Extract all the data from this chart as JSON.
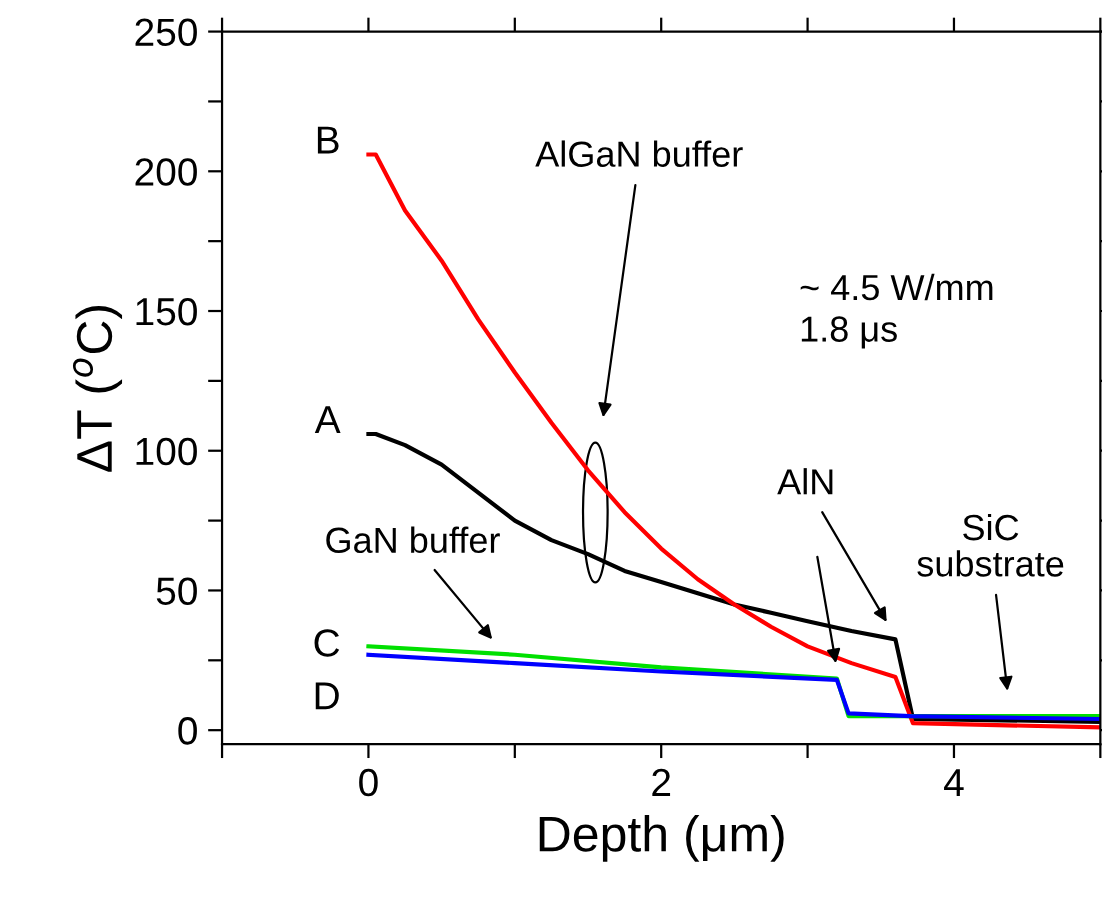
{
  "chart_data": {
    "type": "line",
    "xlabel": "Depth (μm)",
    "ylabel": "ΔT ($^{o}$C)",
    "xlim": [
      -1,
      5
    ],
    "ylim": [
      -5,
      250
    ],
    "xticks": [
      {
        "value": -1,
        "label": null
      },
      0,
      {
        "value": 1,
        "label": null
      },
      2,
      {
        "value": 3,
        "label": null
      },
      4,
      {
        "value": 5,
        "label": null
      }
    ],
    "yticks": [
      0,
      {
        "value": 25,
        "label": null
      },
      50,
      {
        "value": 75,
        "label": null
      },
      100,
      {
        "value": 125,
        "label": null
      },
      150,
      {
        "value": 175,
        "label": null
      },
      200,
      {
        "value": 225,
        "label": null
      },
      250
    ],
    "grid": false,
    "legend": false,
    "marker": "none",
    "line_style": "solid",
    "series": [
      {
        "name": "A",
        "color": "#000000",
        "x": [
          0,
          0.05,
          0.25,
          0.5,
          0.75,
          1,
          1.25,
          1.5,
          1.75,
          2,
          2.25,
          2.5,
          2.75,
          3,
          3.3,
          3.6,
          3.72,
          5
        ],
        "values": [
          106,
          106,
          102,
          95,
          85,
          75,
          68,
          63,
          57,
          53,
          49,
          45,
          42,
          39,
          35.5,
          32.5,
          4,
          3
        ]
      },
      {
        "name": "B",
        "color": "#ff0000",
        "x": [
          0,
          0.05,
          0.25,
          0.5,
          0.75,
          1,
          1.25,
          1.5,
          1.75,
          2,
          2.25,
          2.5,
          2.75,
          3,
          3.3,
          3.6,
          3.72,
          5
        ],
        "values": [
          206,
          206,
          186,
          168,
          147,
          128,
          110,
          93,
          78,
          65,
          54,
          45,
          37,
          30,
          24,
          19,
          2.5,
          1
        ]
      },
      {
        "name": "C",
        "color": "#00e000",
        "x": [
          0,
          1,
          2,
          3.2,
          3.28,
          4,
          5
        ],
        "values": [
          30,
          27,
          22.5,
          18.5,
          5,
          5,
          5
        ]
      },
      {
        "name": "D",
        "color": "#0000ff",
        "x": [
          0,
          1,
          2,
          3.2,
          3.28,
          3.7,
          5
        ],
        "values": [
          27,
          24,
          21,
          18,
          6,
          5,
          4
        ]
      }
    ],
    "annotations": [
      "AlGaN buffer",
      {
        "text": "GaN buffer",
        "x": 0.87,
        "y": 31
      },
      {
        "text": "AlN",
        "x": 3.56,
        "y": 37
      },
      "SiC\nsubstrate",
      "~ 4.5 W/mm\n1.8 μs"
    ]
  }
}
